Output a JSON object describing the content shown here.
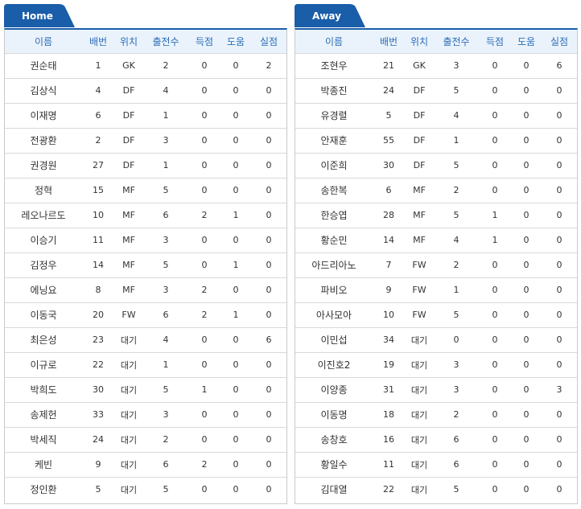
{
  "home": {
    "tab_label": "Home",
    "headers": [
      "이름",
      "배번",
      "위치",
      "출전수",
      "득점",
      "도움",
      "실점"
    ],
    "rows": [
      [
        "권순태",
        "1",
        "GK",
        "2",
        "0",
        "0",
        "2"
      ],
      [
        "김상식",
        "4",
        "DF",
        "4",
        "0",
        "0",
        "0"
      ],
      [
        "이재명",
        "6",
        "DF",
        "1",
        "0",
        "0",
        "0"
      ],
      [
        "전광환",
        "2",
        "DF",
        "3",
        "0",
        "0",
        "0"
      ],
      [
        "권경원",
        "27",
        "DF",
        "1",
        "0",
        "0",
        "0"
      ],
      [
        "정혁",
        "15",
        "MF",
        "5",
        "0",
        "0",
        "0"
      ],
      [
        "레오나르도",
        "10",
        "MF",
        "6",
        "2",
        "1",
        "0"
      ],
      [
        "이승기",
        "11",
        "MF",
        "3",
        "0",
        "0",
        "0"
      ],
      [
        "김정우",
        "14",
        "MF",
        "5",
        "0",
        "1",
        "0"
      ],
      [
        "에닝요",
        "8",
        "MF",
        "3",
        "2",
        "0",
        "0"
      ],
      [
        "이동국",
        "20",
        "FW",
        "6",
        "2",
        "1",
        "0"
      ],
      [
        "최은성",
        "23",
        "대기",
        "4",
        "0",
        "0",
        "6"
      ],
      [
        "이규로",
        "22",
        "대기",
        "1",
        "0",
        "0",
        "0"
      ],
      [
        "박희도",
        "30",
        "대기",
        "5",
        "1",
        "0",
        "0"
      ],
      [
        "송제헌",
        "33",
        "대기",
        "3",
        "0",
        "0",
        "0"
      ],
      [
        "박세직",
        "24",
        "대기",
        "2",
        "0",
        "0",
        "0"
      ],
      [
        "케빈",
        "9",
        "대기",
        "6",
        "2",
        "0",
        "0"
      ],
      [
        "정인환",
        "5",
        "대기",
        "5",
        "0",
        "0",
        "0"
      ]
    ]
  },
  "away": {
    "tab_label": "Away",
    "headers": [
      "이름",
      "배번",
      "위치",
      "출전수",
      "득점",
      "도움",
      "실점"
    ],
    "rows": [
      [
        "조현우",
        "21",
        "GK",
        "3",
        "0",
        "0",
        "6"
      ],
      [
        "박종진",
        "24",
        "DF",
        "5",
        "0",
        "0",
        "0"
      ],
      [
        "유경렬",
        "5",
        "DF",
        "4",
        "0",
        "0",
        "0"
      ],
      [
        "안재훈",
        "55",
        "DF",
        "1",
        "0",
        "0",
        "0"
      ],
      [
        "이준희",
        "30",
        "DF",
        "5",
        "0",
        "0",
        "0"
      ],
      [
        "송한복",
        "6",
        "MF",
        "2",
        "0",
        "0",
        "0"
      ],
      [
        "한승엽",
        "28",
        "MF",
        "5",
        "1",
        "0",
        "0"
      ],
      [
        "황순민",
        "14",
        "MF",
        "4",
        "1",
        "0",
        "0"
      ],
      [
        "아드리아노",
        "7",
        "FW",
        "2",
        "0",
        "0",
        "0"
      ],
      [
        "파비오",
        "9",
        "FW",
        "1",
        "0",
        "0",
        "0"
      ],
      [
        "아사모아",
        "10",
        "FW",
        "5",
        "0",
        "0",
        "0"
      ],
      [
        "이민섭",
        "34",
        "대기",
        "0",
        "0",
        "0",
        "0"
      ],
      [
        "이진호2",
        "19",
        "대기",
        "3",
        "0",
        "0",
        "0"
      ],
      [
        "이양종",
        "31",
        "대기",
        "3",
        "0",
        "0",
        "3"
      ],
      [
        "이동명",
        "18",
        "대기",
        "2",
        "0",
        "0",
        "0"
      ],
      [
        "송창호",
        "16",
        "대기",
        "6",
        "0",
        "0",
        "0"
      ],
      [
        "황일수",
        "11",
        "대기",
        "6",
        "0",
        "0",
        "0"
      ],
      [
        "김대열",
        "22",
        "대기",
        "5",
        "0",
        "0",
        "0"
      ]
    ]
  },
  "colors": {
    "tab": "#1a5da8",
    "header_bg": "#eaf3fb",
    "header_text": "#2a6cb8",
    "border": "#c9c9c9"
  }
}
